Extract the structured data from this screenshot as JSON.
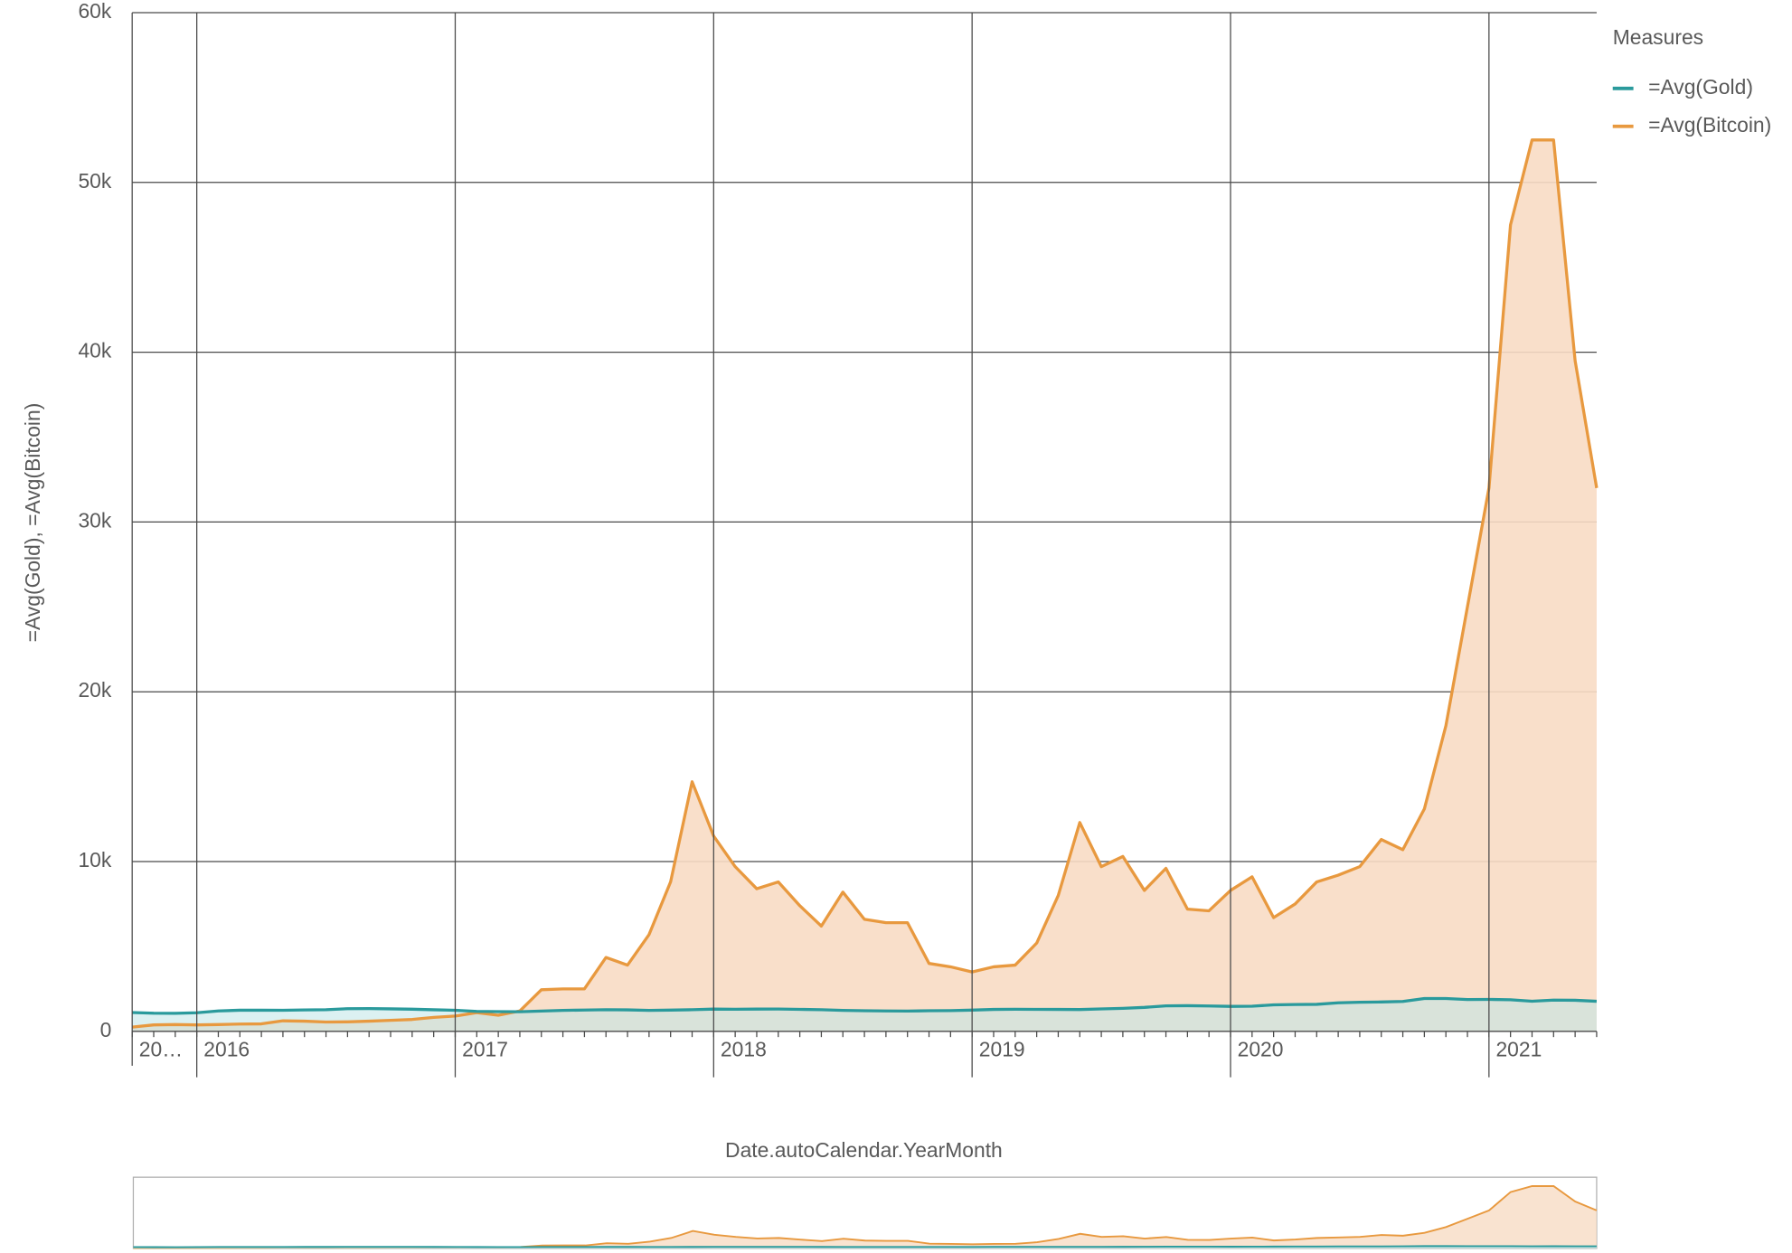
{
  "chart_data": {
    "type": "area",
    "y_axis_title": "=Avg(Gold), =Avg(Bitcoin)",
    "x_axis_title": "Date.autoCalendar.YearMonth",
    "legend_title": "Measures",
    "legend_position": "top-right",
    "grid": true,
    "categories": [
      "20…",
      null,
      null,
      "2016",
      null,
      null,
      null,
      null,
      null,
      null,
      null,
      null,
      null,
      null,
      null,
      "2017",
      null,
      null,
      null,
      null,
      null,
      null,
      null,
      null,
      null,
      null,
      null,
      "2018",
      null,
      null,
      null,
      null,
      null,
      null,
      null,
      null,
      null,
      null,
      null,
      "2019",
      null,
      null,
      null,
      null,
      null,
      null,
      null,
      null,
      null,
      null,
      null,
      "2020",
      null,
      null,
      null,
      null,
      null,
      null,
      null,
      null,
      null,
      null,
      null,
      "2021",
      null,
      null,
      null,
      null,
      null
    ],
    "ylim": [
      0,
      60000
    ],
    "yticks": [
      0,
      {
        "value": 10000,
        "label": "10k"
      },
      {
        "value": 20000,
        "label": "20k"
      },
      {
        "value": 30000,
        "label": "30k"
      },
      {
        "value": 40000,
        "label": "40k"
      },
      {
        "value": 50000,
        "label": "50k"
      },
      {
        "value": 60000,
        "label": "60k"
      }
    ],
    "series": [
      {
        "name": "=Avg(Gold)",
        "color": "#2a9a9c",
        "fill": "#bfe6e8",
        "values": [
          1110,
          1070,
          1060,
          1095,
          1200,
          1245,
          1245,
          1240,
          1260,
          1275,
          1335,
          1340,
          1325,
          1305,
          1270,
          1240,
          1175,
          1160,
          1155,
          1195,
          1235,
          1255,
          1275,
          1265,
          1235,
          1250,
          1275,
          1310,
          1300,
          1310,
          1315,
          1295,
          1275,
          1235,
          1215,
          1200,
          1195,
          1215,
          1220,
          1250,
          1290,
          1300,
          1295,
          1290,
          1285,
          1320,
          1355,
          1410,
          1500,
          1510,
          1495,
          1470,
          1480,
          1560,
          1580,
          1590,
          1680,
          1715,
          1730,
          1760,
          1935,
          1935,
          1875,
          1880,
          1860,
          1775,
          1840,
          1830,
          1770
        ]
      },
      {
        "name": "=Avg(Bitcoin)",
        "color": "#e8993f",
        "fill": "#f8dcc4",
        "values": [
          250,
          380,
          400,
          380,
          400,
          430,
          440,
          620,
          600,
          550,
          560,
          600,
          650,
          700,
          820,
          900,
          1100,
          950,
          1200,
          2450,
          2500,
          2500,
          4350,
          3900,
          5700,
          8800,
          14700,
          11500,
          9700,
          8400,
          8800,
          7400,
          6200,
          8200,
          6600,
          6400,
          6400,
          4000,
          3800,
          3500,
          3800,
          3900,
          5200,
          8000,
          12300,
          9700,
          10300,
          8300,
          9600,
          7200,
          7100,
          8300,
          9100,
          6700,
          7500,
          8800,
          9200,
          9700,
          11300,
          10700,
          13100,
          18000,
          25000,
          32000,
          47500,
          52500,
          52500,
          39500,
          32000
        ]
      }
    ]
  }
}
